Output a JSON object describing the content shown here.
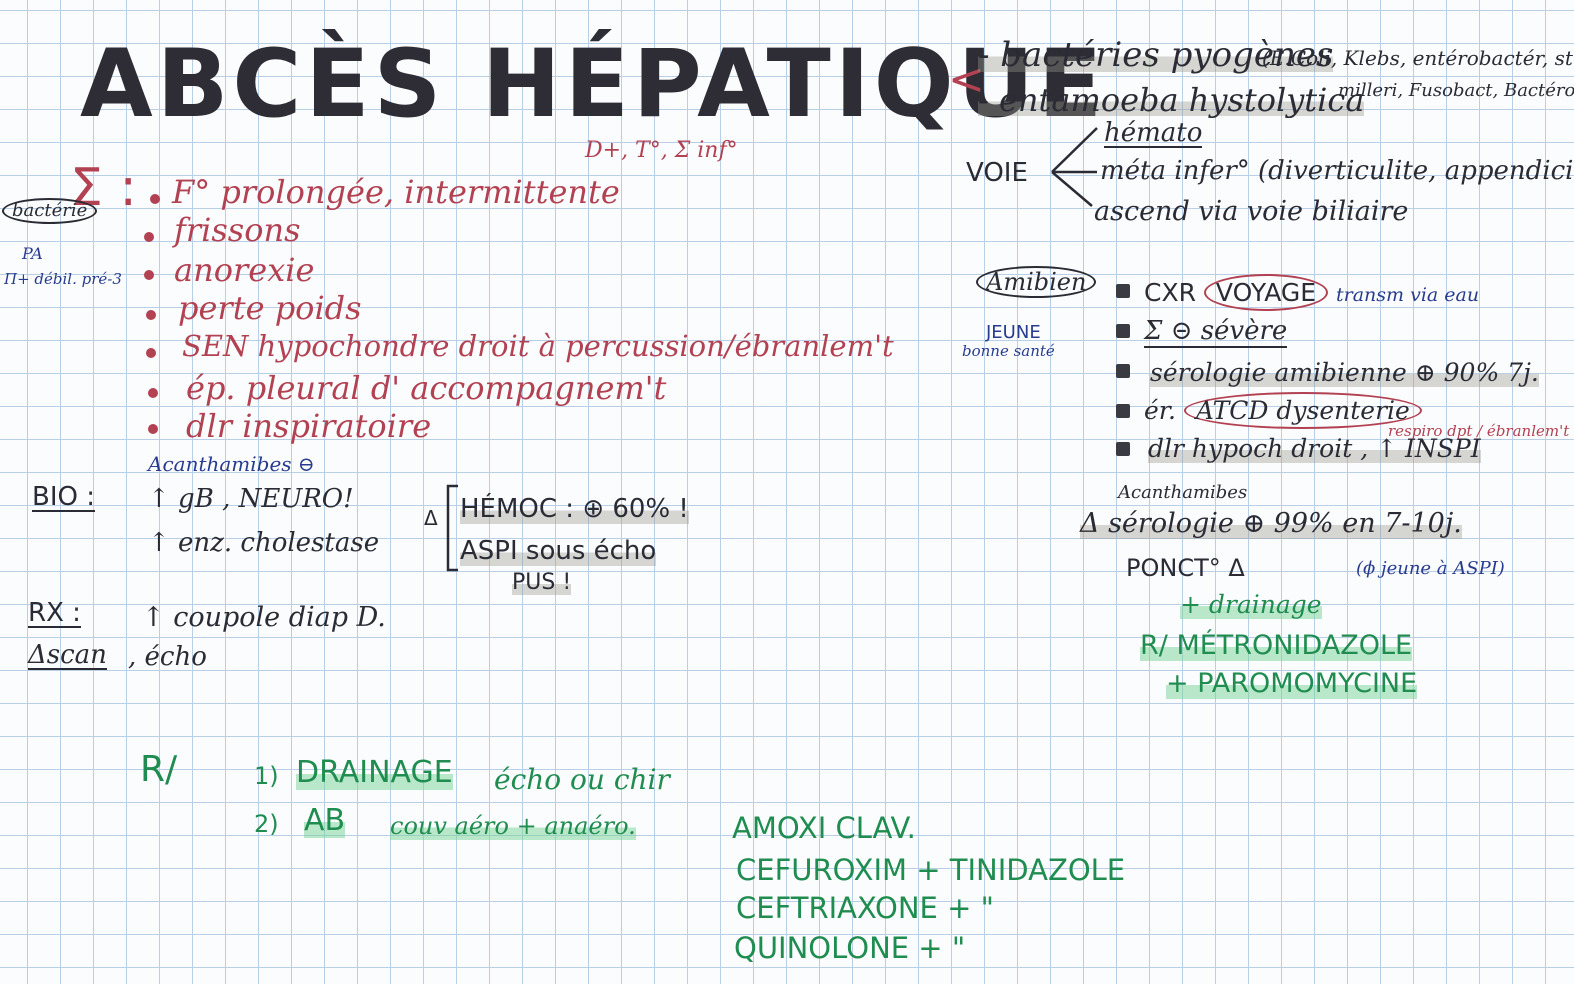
{
  "title": "ABCÈS HÉPATIQUE",
  "subtitle_note": "D+, T°, Σ inf°",
  "causes": {
    "bracket": "<",
    "line1": "- bactéries pyogènes",
    "line1_detail": "(E.Coli, Klebs, entérobactér, strept.",
    "line2": "- entamoeba hystolytica",
    "line2_detail": "milleri, Fusobact, Bactéroides)"
  },
  "voie": {
    "label": "VOIE",
    "items": [
      "hémato",
      "méta infer° (diverticulite, appendicite)",
      "ascend via voie biliaire"
    ]
  },
  "symptoms": {
    "sigma": "Σ :",
    "side_label": "bactérie",
    "side_note1": "PA",
    "side_note2": "Π+ débil. pré-3",
    "items": [
      "F° prolongée, intermittente",
      "frissons",
      "anorexie",
      "perte poids",
      "SEN hypochondre droit à percussion/ébranlem't",
      "ép. pleural d' accompagnem't",
      "dlr inspiratoire"
    ]
  },
  "bio": {
    "label": "BIO :",
    "note": "Acanthamibes ⊖",
    "line1": "↑ gB , NEURO!",
    "line2": "↑ enz. cholestase"
  },
  "diag": {
    "delta": "Δ",
    "hemoc": "HÉMOC : ⊕ 60% !",
    "aspi": "ASPI sous écho",
    "pus": "PUS !"
  },
  "rx": {
    "label": "RX :",
    "text": "↑ coupole diap D.",
    "dscan": "Δscan",
    "echo": ", écho"
  },
  "amibien": {
    "label": "Amibien",
    "side1": "JEUNE",
    "side2": "bonne santé",
    "items": [
      {
        "text": "CXR",
        "circled": "VOYAGE",
        "extra": "transm via eau"
      },
      {
        "text": "Σ ⊝ sévère",
        "circled": "",
        "extra": ""
      },
      {
        "text": "sérologie amibienne ⊕ 90% 7j.",
        "circled": "",
        "extra": ""
      },
      {
        "text": "ér.",
        "circled": "ATCD dysenterie",
        "extra": ""
      },
      {
        "text": "dlr hypoch droit , ↑ INSPI",
        "circled": "",
        "extra": "respiro dpt / ébranlem't"
      }
    ],
    "note": "Acanthamibes",
    "delta_line": "Δ sérologie ⊕ 99% en 7-10j.",
    "ponct": "PONCT° Δ",
    "ponct_note": "(ϕ jeune à ASPI)",
    "drainage": "+ drainage",
    "rx1": "R/ MÉTRONIDAZOLE",
    "rx2": "+ PAROMOMYCINE"
  },
  "treatment": {
    "label": "R/",
    "step1_num": "1)",
    "step1": "DRAINAGE",
    "step1_rest": "écho ou chir",
    "step2_num": "2)",
    "step2": "AB",
    "step2_rest": "couv aéro + anaéro.",
    "abx": [
      "AMOXI CLAV.",
      "CEFUROXIM + TINIDAZOLE",
      "CEFTRIAXONE + \"",
      "QUINOLONE + \""
    ]
  }
}
